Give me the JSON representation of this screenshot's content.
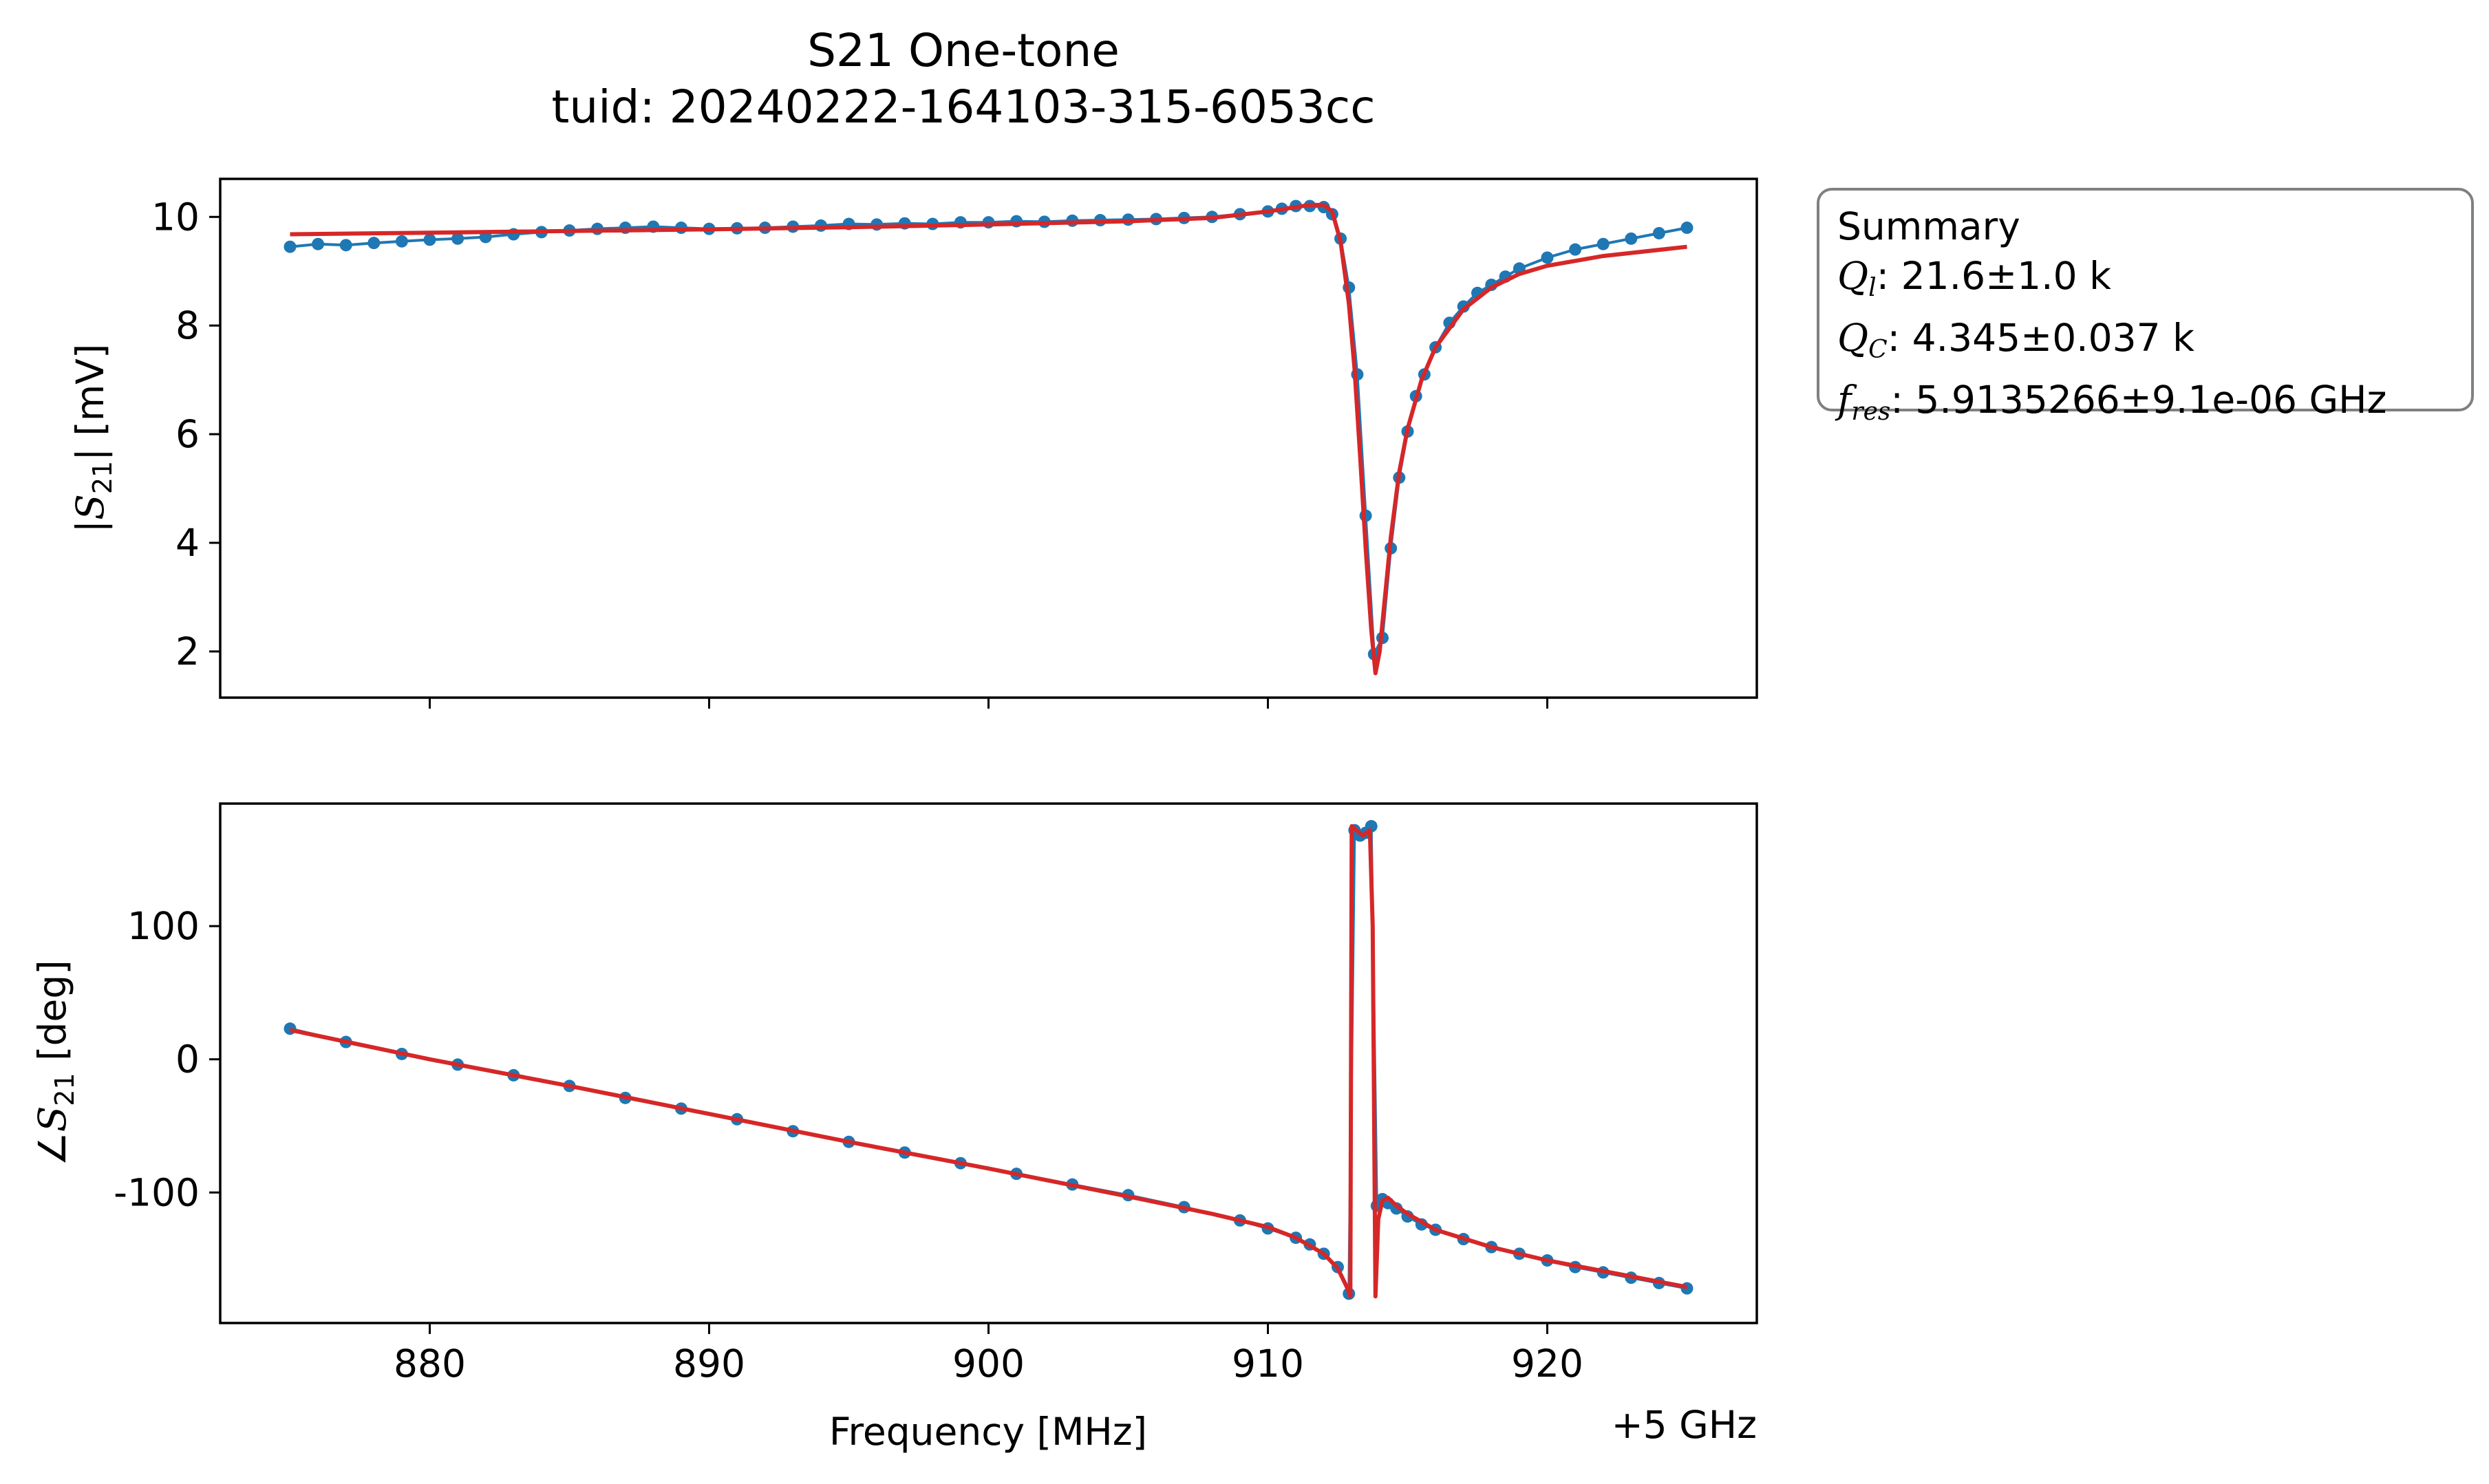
{
  "figure": {
    "title_line1": "S21 One-tone",
    "title_line2": "tuid: 20240222-164103-315-6053cc",
    "offset_label": "+5 GHz"
  },
  "summary": {
    "header": "Summary",
    "rows": [
      {
        "symbol": "Q",
        "sub": "l",
        "value": ": 21.6±1.0 k"
      },
      {
        "symbol": "Q",
        "sub": "C",
        "value": ": 4.345±0.037 k"
      },
      {
        "symbol": "f",
        "sub": "res",
        "value": ": 5.9135266±9.1e-06 GHz"
      }
    ]
  },
  "colors": {
    "data": "#1f77b4",
    "fit": "#d62728",
    "box_edge": "#808080"
  },
  "chart_data": [
    {
      "type": "scatter",
      "xlabel": "",
      "ylabel_parts": {
        "pre": "|",
        "sym": "S",
        "sub": "21",
        "post": "| [mV]"
      },
      "xlim": [
        872.5,
        927.5
      ],
      "ylim": [
        1.15,
        10.7
      ],
      "xticks": [
        880,
        890,
        900,
        910,
        920
      ],
      "xtick_labels_visible": false,
      "yticks": [
        2,
        4,
        6,
        8,
        10
      ],
      "grid": false,
      "series": [
        {
          "role": "data",
          "marker": "dot",
          "x": [
            875.0,
            876.0,
            877.0,
            878.0,
            879.0,
            880.0,
            881.0,
            882.0,
            883.0,
            884.0,
            885.0,
            886.0,
            887.0,
            888.0,
            889.0,
            890.0,
            891.0,
            892.0,
            893.0,
            894.0,
            895.0,
            896.0,
            897.0,
            898.0,
            899.0,
            900.0,
            901.0,
            902.0,
            903.0,
            904.0,
            905.0,
            906.0,
            907.0,
            908.0,
            909.0,
            910.0,
            910.5,
            911.0,
            911.5,
            912.0,
            912.3,
            912.6,
            912.9,
            913.2,
            913.5,
            913.8,
            914.1,
            914.4,
            914.7,
            915.0,
            915.3,
            915.6,
            916.0,
            916.5,
            917.0,
            917.5,
            918.0,
            918.5,
            919.0,
            920.0,
            921.0,
            922.0,
            923.0,
            924.0,
            925.0
          ],
          "y": [
            9.45,
            9.5,
            9.48,
            9.52,
            9.55,
            9.58,
            9.6,
            9.63,
            9.68,
            9.72,
            9.75,
            9.78,
            9.8,
            9.82,
            9.8,
            9.78,
            9.79,
            9.8,
            9.82,
            9.84,
            9.87,
            9.86,
            9.88,
            9.87,
            9.9,
            9.9,
            9.92,
            9.91,
            9.93,
            9.94,
            9.95,
            9.96,
            9.98,
            10.0,
            10.05,
            10.1,
            10.15,
            10.2,
            10.2,
            10.18,
            10.05,
            9.6,
            8.7,
            7.1,
            4.5,
            1.95,
            2.25,
            3.9,
            5.2,
            6.05,
            6.7,
            7.1,
            7.6,
            8.05,
            8.35,
            8.6,
            8.75,
            8.9,
            9.05,
            9.25,
            9.4,
            9.5,
            9.6,
            9.7,
            9.8
          ]
        },
        {
          "role": "fit",
          "marker": "line",
          "x": [
            875.0,
            880.0,
            885.0,
            890.0,
            895.0,
            900.0,
            905.0,
            908.0,
            910.0,
            911.0,
            911.5,
            912.0,
            912.3,
            912.6,
            912.9,
            913.1,
            913.3,
            913.5,
            913.7,
            913.85,
            914.0,
            914.2,
            914.4,
            914.7,
            915.0,
            915.5,
            916.0,
            917.0,
            918.0,
            919.0,
            920.0,
            922.0,
            925.0
          ],
          "y": [
            9.68,
            9.71,
            9.74,
            9.77,
            9.81,
            9.86,
            9.92,
            9.98,
            10.1,
            10.18,
            10.22,
            10.22,
            10.1,
            9.55,
            8.4,
            7.2,
            5.6,
            3.9,
            2.4,
            1.6,
            2.0,
            3.05,
            4.1,
            5.3,
            6.1,
            7.0,
            7.6,
            8.3,
            8.7,
            8.95,
            9.1,
            9.28,
            9.45
          ]
        }
      ]
    },
    {
      "type": "scatter",
      "xlabel": "Frequency [MHz]",
      "ylabel_parts": {
        "pre": "∠",
        "sym": "S",
        "sub": "21",
        "post": " [deg]"
      },
      "xlim": [
        872.5,
        927.5
      ],
      "ylim": [
        -198,
        192
      ],
      "xticks": [
        880,
        890,
        900,
        910,
        920
      ],
      "xtick_labels": [
        "880",
        "890",
        "900",
        "910",
        "920"
      ],
      "yticks": [
        100,
        0,
        -100
      ],
      "ytick_labels": [
        "100",
        "0",
        "-100"
      ],
      "grid": false,
      "series": [
        {
          "role": "data",
          "marker": "dot",
          "x": [
            875.0,
            877.0,
            879.0,
            881.0,
            883.0,
            885.0,
            887.0,
            889.0,
            891.0,
            893.0,
            895.0,
            897.0,
            899.0,
            901.0,
            903.0,
            905.0,
            907.0,
            909.0,
            910.0,
            911.0,
            911.5,
            912.0,
            912.5,
            912.9,
            913.1,
            913.3,
            913.5,
            913.7,
            913.9,
            914.1,
            914.3,
            914.6,
            915.0,
            915.5,
            916.0,
            917.0,
            918.0,
            919.0,
            920.0,
            921.0,
            922.0,
            923.0,
            924.0,
            925.0
          ],
          "y": [
            23,
            13,
            4,
            -4,
            -12,
            -20,
            -29,
            -37,
            -45,
            -54,
            -62,
            -70,
            -78,
            -86,
            -94,
            -102,
            -111,
            -121,
            -127,
            -134,
            -139,
            -146,
            -156,
            -176,
            172,
            168,
            170,
            175,
            -110,
            -105,
            -108,
            -112,
            -118,
            -124,
            -128,
            -135,
            -141,
            -146,
            -151,
            -156,
            -160,
            -164,
            -168,
            -172
          ]
        },
        {
          "role": "fit",
          "marker": "line",
          "x": [
            875.0,
            880.0,
            885.0,
            890.0,
            895.0,
            900.0,
            905.0,
            908.0,
            910.0,
            911.0,
            912.0,
            912.5,
            912.85,
            912.95,
            913.0,
            913.4,
            913.65,
            913.75,
            913.85,
            913.95,
            914.1,
            914.3,
            914.6,
            915.0,
            916.0,
            918.0,
            920.0,
            922.0,
            925.0
          ],
          "y": [
            22,
            0,
            -20,
            -41,
            -62,
            -82,
            -103,
            -116,
            -126,
            -134,
            -146,
            -157,
            -172,
            -178,
            175,
            168,
            172,
            100,
            -178,
            -120,
            -106,
            -104,
            -110,
            -116,
            -128,
            -141,
            -151,
            -159,
            -171
          ]
        }
      ]
    }
  ]
}
